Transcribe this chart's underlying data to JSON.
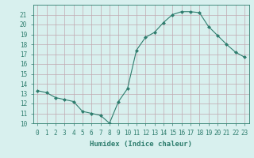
{
  "x": [
    0,
    1,
    2,
    3,
    4,
    5,
    6,
    7,
    8,
    9,
    10,
    11,
    12,
    13,
    14,
    15,
    16,
    17,
    18,
    19,
    20,
    21,
    22,
    23
  ],
  "y": [
    13.3,
    13.1,
    12.6,
    12.4,
    12.2,
    11.2,
    11.0,
    10.8,
    10.0,
    12.2,
    13.5,
    17.4,
    18.7,
    19.2,
    20.2,
    21.0,
    21.3,
    21.3,
    21.2,
    19.8,
    18.9,
    18.0,
    17.2,
    16.7
  ],
  "line_color": "#2e7d6e",
  "marker": "D",
  "marker_size": 2,
  "bg_color": "#d8f0ee",
  "grid_color": "#c0a8b0",
  "xlabel": "Humidex (Indice chaleur)",
  "xlim": [
    -0.5,
    23.5
  ],
  "ylim": [
    10,
    22
  ],
  "yticks": [
    10,
    11,
    12,
    13,
    14,
    15,
    16,
    17,
    18,
    19,
    20,
    21
  ],
  "xticks": [
    0,
    1,
    2,
    3,
    4,
    5,
    6,
    7,
    8,
    9,
    10,
    11,
    12,
    13,
    14,
    15,
    16,
    17,
    18,
    19,
    20,
    21,
    22,
    23
  ],
  "tick_color": "#2e7d6e",
  "label_color": "#2e7d6e",
  "xlabel_fontsize": 6.5,
  "tick_fontsize": 5.5
}
